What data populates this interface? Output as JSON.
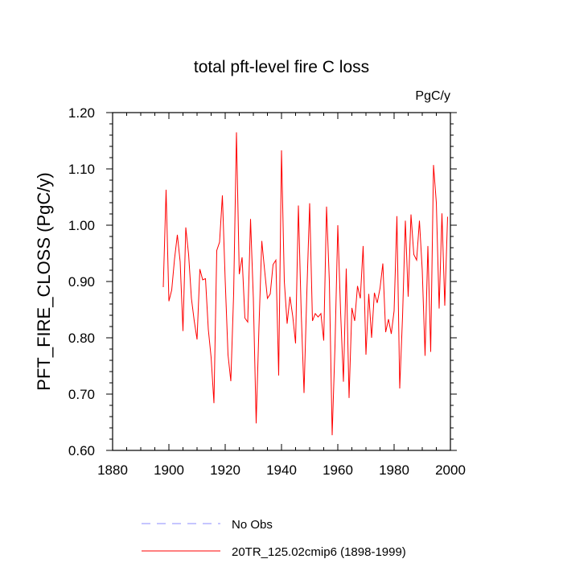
{
  "chart_data": {
    "type": "line",
    "title": "total pft-level fire C loss",
    "units": "PgC/y",
    "xlabel": "",
    "ylabel": "PFT_FIRE_CLOSS  (PgC/y)",
    "xlim": [
      1880,
      2000
    ],
    "ylim": [
      0.6,
      1.2
    ],
    "xticks": [
      1880,
      1900,
      1920,
      1940,
      1960,
      1980,
      2000
    ],
    "xtick_labels": [
      "1880",
      "1900",
      "1920",
      "1940",
      "1960",
      "1980",
      "2000"
    ],
    "yticks": [
      0.6,
      0.7,
      0.8,
      0.9,
      1.0,
      1.1,
      1.2
    ],
    "ytick_labels": [
      "0.60",
      "0.70",
      "0.80",
      "0.90",
      "1.00",
      "1.10",
      "1.20"
    ],
    "grid": false,
    "legend_position": "bottom-center",
    "series": [
      {
        "name": "20TR_125.02cmip6 (1898-1999)",
        "color": "#ff0000",
        "dash": "solid",
        "x": [
          1898,
          1899,
          1900,
          1901,
          1902,
          1903,
          1904,
          1905,
          1906,
          1907,
          1908,
          1909,
          1910,
          1911,
          1912,
          1913,
          1914,
          1915,
          1916,
          1917,
          1918,
          1919,
          1920,
          1921,
          1922,
          1923,
          1924,
          1925,
          1926,
          1927,
          1928,
          1929,
          1930,
          1931,
          1932,
          1933,
          1934,
          1935,
          1936,
          1937,
          1938,
          1939,
          1940,
          1941,
          1942,
          1943,
          1944,
          1945,
          1946,
          1947,
          1948,
          1949,
          1950,
          1951,
          1952,
          1953,
          1954,
          1955,
          1956,
          1957,
          1958,
          1959,
          1960,
          1961,
          1962,
          1963,
          1964,
          1965,
          1966,
          1967,
          1968,
          1969,
          1970,
          1971,
          1972,
          1973,
          1974,
          1975,
          1976,
          1977,
          1978,
          1979,
          1980,
          1981,
          1982,
          1983,
          1984,
          1985,
          1986,
          1987,
          1988,
          1989,
          1990,
          1991,
          1992,
          1993,
          1994,
          1995,
          1996,
          1997,
          1998,
          1999
        ],
        "values": [
          0.89,
          1.063,
          0.865,
          0.885,
          0.94,
          0.983,
          0.935,
          0.812,
          0.996,
          0.948,
          0.87,
          0.83,
          0.797,
          0.922,
          0.903,
          0.905,
          0.815,
          0.765,
          0.684,
          0.955,
          0.97,
          1.053,
          0.902,
          0.77,
          0.723,
          0.878,
          1.165,
          0.913,
          0.943,
          0.835,
          0.828,
          1.011,
          0.87,
          0.648,
          0.82,
          0.972,
          0.92,
          0.87,
          0.878,
          0.93,
          0.938,
          0.733,
          1.133,
          0.9,
          0.825,
          0.873,
          0.838,
          0.79,
          1.035,
          0.845,
          0.702,
          0.88,
          1.039,
          0.83,
          0.843,
          0.837,
          0.843,
          0.795,
          1.033,
          0.9,
          0.627,
          0.785,
          1.0,
          0.845,
          0.722,
          0.923,
          0.693,
          0.853,
          0.83,
          0.892,
          0.87,
          0.963,
          0.77,
          0.878,
          0.8,
          0.88,
          0.862,
          0.888,
          0.932,
          0.81,
          0.833,
          0.807,
          0.848,
          1.016,
          0.71,
          0.838,
          1.008,
          0.873,
          1.019,
          0.948,
          0.938,
          1.008,
          0.92,
          0.768,
          0.963,
          0.775,
          1.107,
          1.04,
          0.852,
          1.021,
          0.857,
          1.015
        ]
      }
    ],
    "legend": [
      {
        "label": "No Obs",
        "color": "#8c8cff",
        "dash": "dashed"
      },
      {
        "label": "20TR_125.02cmip6 (1898-1999)",
        "color": "#ff0000",
        "dash": "solid"
      }
    ]
  }
}
